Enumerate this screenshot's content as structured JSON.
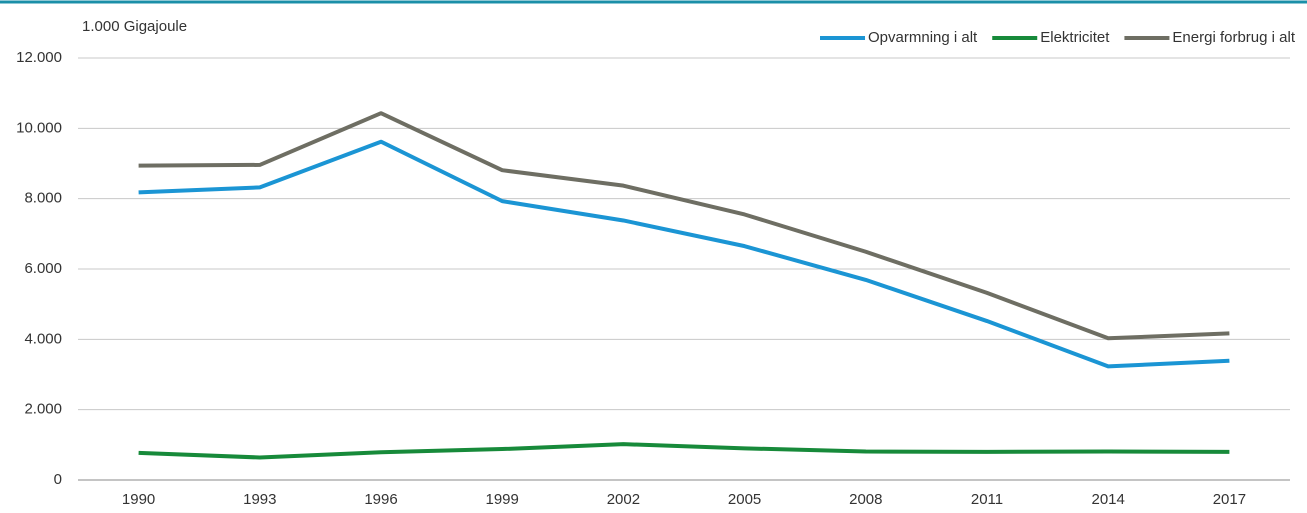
{
  "chart_data": {
    "type": "line",
    "y_label": "1.000 Gigajoule",
    "categories": [
      "1990",
      "1993",
      "1996",
      "1999",
      "2002",
      "2005",
      "2008",
      "2011",
      "2014",
      "2017"
    ],
    "series": [
      {
        "name": "Opvarmning i alt",
        "color": "#1b95d4",
        "values": [
          8180,
          8320,
          9620,
          7930,
          7380,
          6650,
          5690,
          4520,
          3230,
          3390
        ]
      },
      {
        "name": "Elektricitet",
        "color": "#178a3a",
        "values": [
          770,
          640,
          790,
          880,
          1020,
          900,
          810,
          800,
          810,
          800
        ]
      },
      {
        "name": "Energi forbrug i alt",
        "color": "#6e6e63",
        "values": [
          8940,
          8960,
          10430,
          8810,
          8370,
          7550,
          6490,
          5320,
          4030,
          4170
        ]
      }
    ],
    "ylim": [
      0,
      12000
    ],
    "yticks": [
      0,
      {
        "value": 2000,
        "label": "2.000"
      },
      {
        "value": 4000,
        "label": "4.000"
      },
      {
        "value": 6000,
        "label": "6.000"
      },
      {
        "value": 8000,
        "label": "8.000"
      },
      {
        "value": 10000,
        "label": "10.000"
      },
      {
        "value": 12000,
        "label": "12.000"
      }
    ],
    "grid": true,
    "legend": "top-right"
  }
}
